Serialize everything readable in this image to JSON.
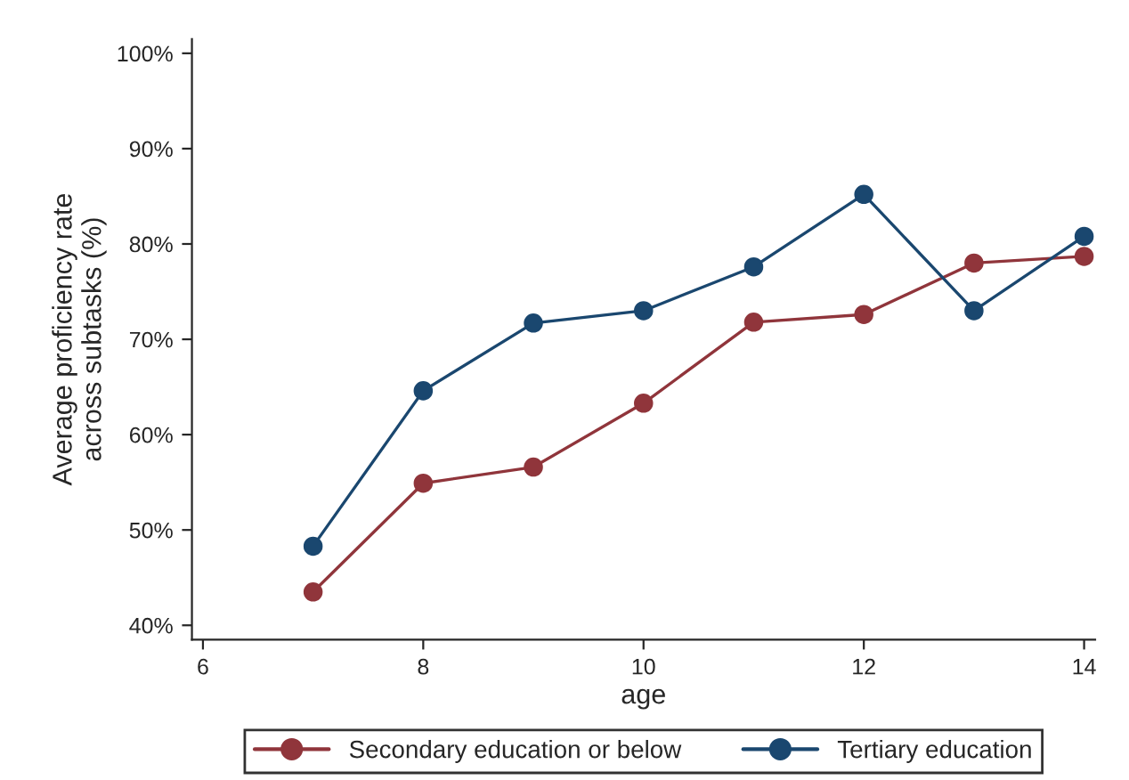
{
  "chart_data": {
    "type": "line",
    "xlabel": "age",
    "ylabel": "Average proficiency rate\nacross subtasks (%)",
    "x": [
      7,
      8,
      9,
      10,
      11,
      12,
      13,
      14
    ],
    "series": [
      {
        "name": "Secondary education or below",
        "color": "#90353b",
        "values": [
          43.5,
          54.9,
          56.6,
          63.3,
          71.8,
          72.6,
          78.0,
          78.7
        ]
      },
      {
        "name": "Tertiary education",
        "color": "#1a476f",
        "values": [
          48.3,
          64.6,
          71.7,
          73.0,
          77.6,
          85.2,
          73.0,
          80.8
        ]
      }
    ],
    "xlim": [
      5.9,
      14.1
    ],
    "xticks": [
      6,
      8,
      10,
      12,
      14
    ],
    "ylim": [
      38.5,
      101.5
    ],
    "yticks": [
      {
        "value": 40,
        "label": "40%"
      },
      {
        "value": 50,
        "label": "50%"
      },
      {
        "value": 60,
        "label": "60%"
      },
      {
        "value": 70,
        "label": "70%"
      },
      {
        "value": 80,
        "label": "80%"
      },
      {
        "value": 90,
        "label": "90%"
      },
      {
        "value": 100,
        "label": "100%"
      }
    ],
    "marker": "circle",
    "line_style": "solid",
    "legend": "bottom"
  }
}
